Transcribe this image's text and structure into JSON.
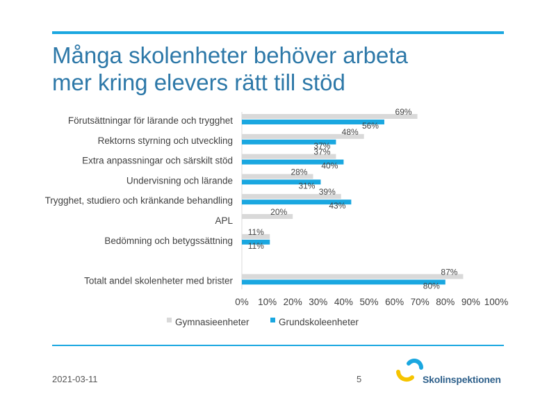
{
  "slide": {
    "title_line1": "Många skolenheter behöver arbeta",
    "title_line2": "mer kring elevers rätt till stöd",
    "date": "2021-03-11",
    "page_number": "5",
    "logo_text": "Skolinspektionen",
    "accent_color": "#1aa7e0",
    "title_color": "#2d78a8"
  },
  "chart_data": {
    "type": "bar",
    "orientation": "horizontal",
    "categories": [
      "Förutsättningar för lärande och trygghet",
      "Rektorns styrning och utveckling",
      "Extra anpassningar och särskilt stöd",
      "Undervisning och lärande",
      "Trygghet, studiero och kränkande behandling",
      "APL",
      "Bedömning och betygssättning",
      "",
      "Totalt andel skolenheter med brister"
    ],
    "series": [
      {
        "name": "Gymnasieenheter",
        "color": "#d9d9d9",
        "values": [
          69,
          48,
          37,
          28,
          39,
          20,
          11,
          null,
          87
        ],
        "labels": [
          "69%",
          "48%",
          "37%",
          "28%",
          "39%",
          "20%",
          "11%",
          "",
          "87%"
        ]
      },
      {
        "name": "Grundskoleenheter",
        "color": "#1aa7e0",
        "values": [
          56,
          37,
          40,
          31,
          43,
          null,
          11,
          null,
          80
        ],
        "labels": [
          "56%",
          "37%",
          "40%",
          "31%",
          "43%",
          "",
          "11%",
          "",
          "80%"
        ]
      }
    ],
    "xlim": [
      0,
      100
    ],
    "x_ticks": [
      0,
      10,
      20,
      30,
      40,
      50,
      60,
      70,
      80,
      90,
      100
    ],
    "x_tick_labels": [
      "0%",
      "10%",
      "20%",
      "30%",
      "40%",
      "50%",
      "60%",
      "70%",
      "80%",
      "90%",
      "100%"
    ],
    "grid": false,
    "legend_position": "bottom"
  }
}
